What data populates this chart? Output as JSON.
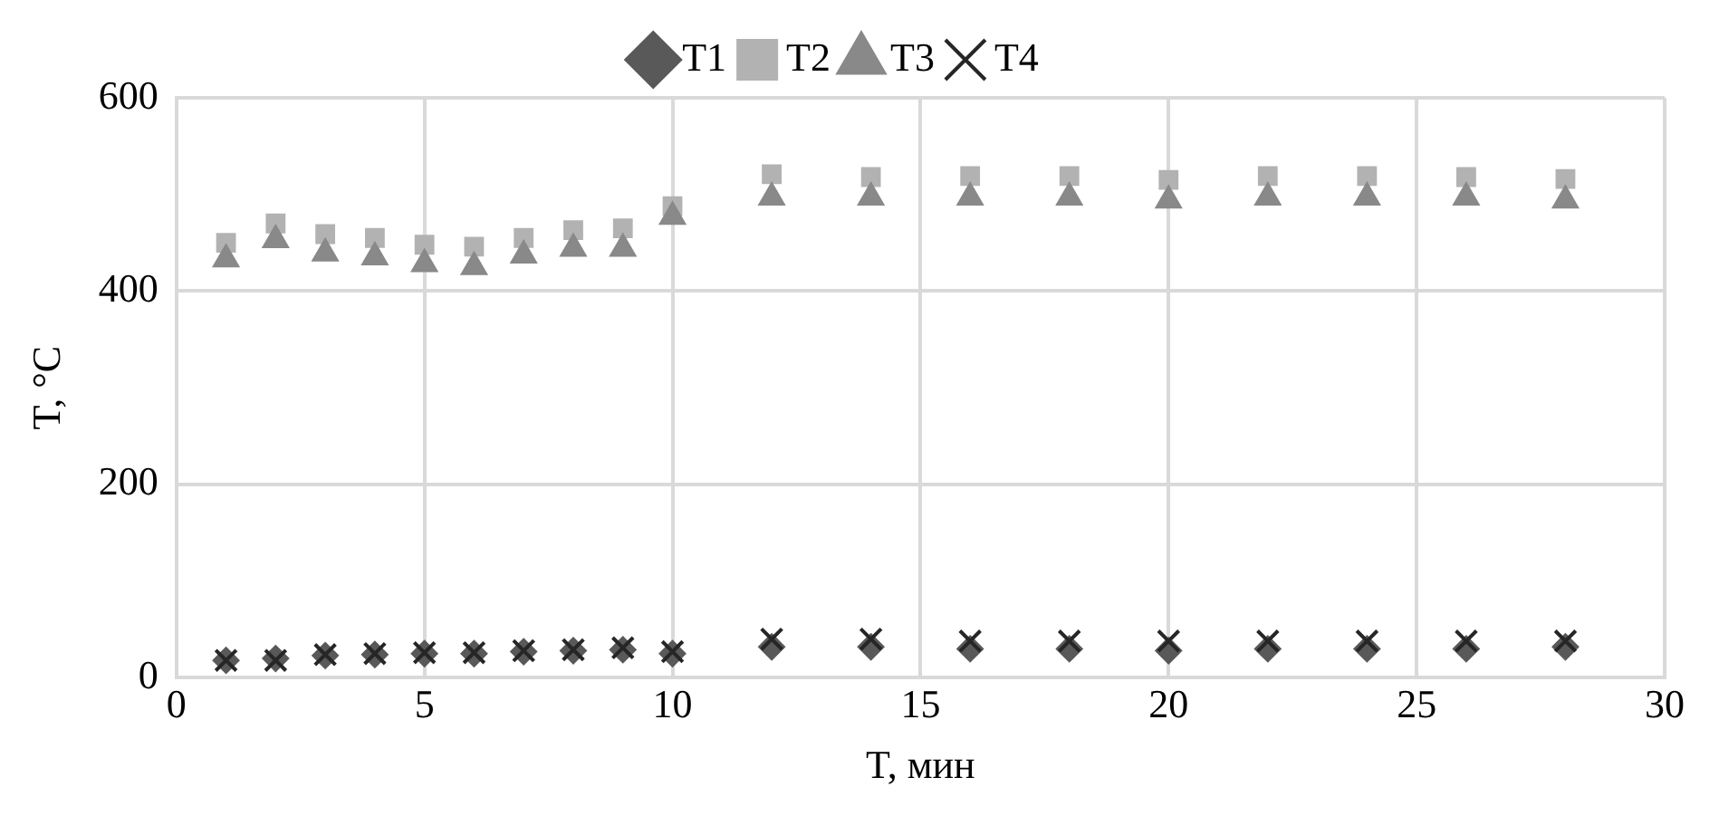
{
  "chart_data": {
    "type": "scatter",
    "xlabel": "T, мин",
    "ylabel": "T, °C",
    "legend": "top",
    "grid": true,
    "x": [
      1,
      2,
      3,
      4,
      5,
      6,
      7,
      8,
      9,
      10,
      12,
      14,
      16,
      18,
      20,
      22,
      24,
      26,
      28
    ],
    "xlim": [
      0,
      30
    ],
    "xticks": [
      0,
      5,
      10,
      15,
      20,
      25,
      30
    ],
    "ylim": [
      0,
      600
    ],
    "yticks": [
      0,
      200,
      400,
      600
    ],
    "series": [
      {
        "name": "T1",
        "color": "#595959",
        "marker": "diamond",
        "values": [
          18,
          20,
          23,
          24,
          25,
          25,
          27,
          28,
          29,
          25,
          32,
          32,
          30,
          30,
          28,
          30,
          30,
          30,
          32
        ]
      },
      {
        "name": "T2",
        "color": "#b2b2b2",
        "marker": "square",
        "values": [
          450,
          470,
          459,
          455,
          448,
          446,
          455,
          463,
          465,
          488,
          521,
          518,
          519,
          519,
          515,
          519,
          519,
          518,
          516
        ]
      },
      {
        "name": "T3",
        "color": "#898989",
        "marker": "triangle",
        "values": [
          433,
          453,
          439,
          435,
          428,
          425,
          437,
          444,
          444,
          477,
          497,
          497,
          497,
          497,
          494,
          497,
          497,
          497,
          494
        ]
      },
      {
        "name": "T4",
        "color": "#262626",
        "marker": "cross",
        "values": [
          18,
          18,
          24,
          25,
          26,
          26,
          28,
          29,
          31,
          27,
          40,
          40,
          38,
          38,
          38,
          38,
          38,
          38,
          38
        ]
      }
    ]
  }
}
